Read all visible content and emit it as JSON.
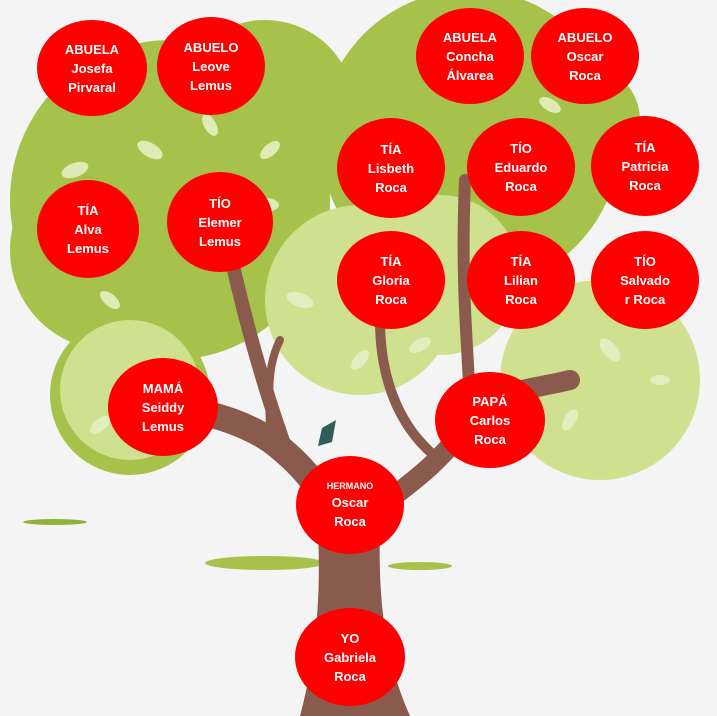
{
  "colors": {
    "node_fill": "#fe0000",
    "node_text": "#ffffff",
    "foliage_dark": "#a7c24a",
    "foliage_light": "#cfe08f",
    "trunk": "#8a5a4c",
    "background": "#f4f4f4"
  },
  "nodes": {
    "abuela_josefa": {
      "role": "ABUELA",
      "first": "Josefa",
      "last": "Pirvaral"
    },
    "abuelo_leove": {
      "role": "ABUELO",
      "first": "Leove",
      "last": "Lemus"
    },
    "abuela_concha": {
      "role": "ABUELA",
      "first": "Concha",
      "last": "Álvarea"
    },
    "abuelo_oscar": {
      "role": "ABUELO",
      "first": "Oscar",
      "last": "Roca"
    },
    "tia_lisbeth": {
      "role": "TÍA",
      "first": "Lisbeth",
      "last": "Roca"
    },
    "tio_eduardo": {
      "role": "TÍO",
      "first": "Eduardo",
      "last": "Roca"
    },
    "tia_patricia": {
      "role": "TÍA",
      "first": "Patricia",
      "last": "Roca"
    },
    "tia_alva": {
      "role": "TÍA",
      "first": "Alva",
      "last": "Lemus"
    },
    "tio_elemer": {
      "role": "TÍO",
      "first": "Elemer",
      "last": "Lemus"
    },
    "tia_gloria": {
      "role": "TÍA",
      "first": "Gloria",
      "last": "Roca"
    },
    "tia_lilian": {
      "role": "TÍA",
      "first": "Lilian",
      "last": "Roca"
    },
    "tio_salvador": {
      "role": "TÍO",
      "first": "Salvado",
      "last": "r Roca"
    },
    "mama_seiddy": {
      "role": "MAMÁ",
      "first": "Seiddy",
      "last": "Lemus"
    },
    "papa_carlos": {
      "role": "PAPÁ",
      "first": "Carlos",
      "last": "Roca"
    },
    "hermano_oscar": {
      "role": "HERMANO",
      "first": "Oscar",
      "last": "Roca"
    },
    "yo_gabriela": {
      "role": "YO",
      "first": "Gabriela",
      "last": "Roca"
    }
  }
}
